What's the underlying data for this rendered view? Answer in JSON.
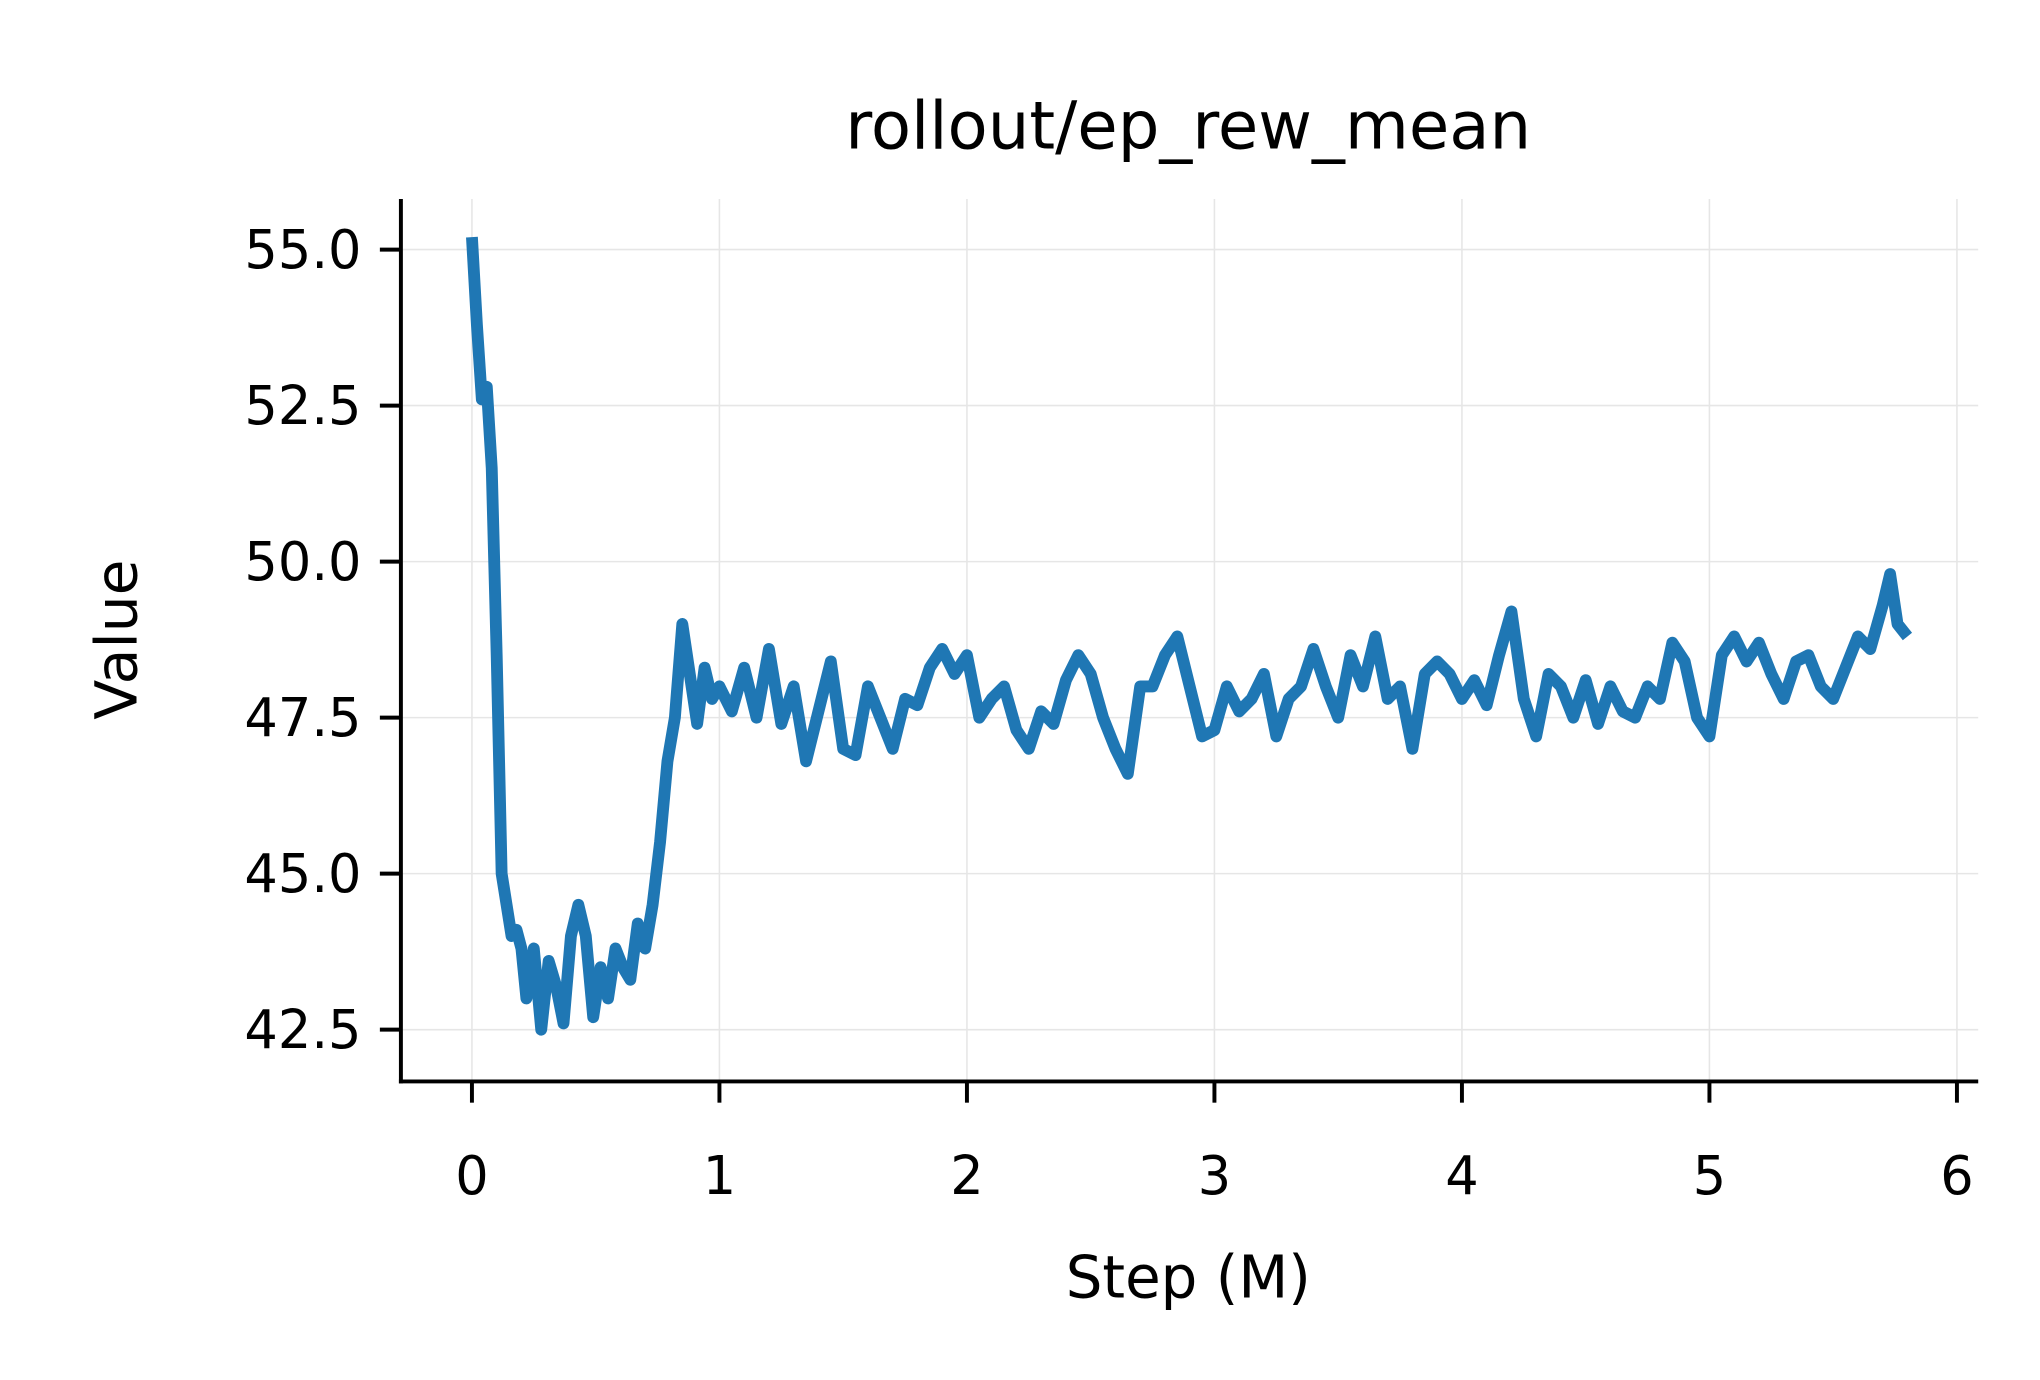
{
  "chart_data": {
    "type": "line",
    "title": "rollout/ep_rew_mean",
    "xlabel": "Step (M)",
    "ylabel": "Value",
    "x": [
      0,
      0.02,
      0.04,
      0.06,
      0.08,
      0.1,
      0.12,
      0.14,
      0.16,
      0.18,
      0.2,
      0.22,
      0.25,
      0.28,
      0.31,
      0.34,
      0.37,
      0.4,
      0.43,
      0.46,
      0.49,
      0.52,
      0.55,
      0.58,
      0.61,
      0.64,
      0.67,
      0.7,
      0.73,
      0.76,
      0.79,
      0.82,
      0.85,
      0.88,
      0.91,
      0.94,
      0.97,
      1.0,
      1.05,
      1.1,
      1.15,
      1.2,
      1.25,
      1.3,
      1.35,
      1.4,
      1.45,
      1.5,
      1.55,
      1.6,
      1.65,
      1.7,
      1.75,
      1.8,
      1.85,
      1.9,
      1.95,
      2.0,
      2.05,
      2.1,
      2.15,
      2.2,
      2.25,
      2.3,
      2.35,
      2.4,
      2.45,
      2.5,
      2.55,
      2.6,
      2.65,
      2.7,
      2.75,
      2.8,
      2.85,
      2.9,
      2.95,
      3.0,
      3.05,
      3.1,
      3.15,
      3.2,
      3.25,
      3.3,
      3.35,
      3.4,
      3.45,
      3.5,
      3.55,
      3.6,
      3.65,
      3.7,
      3.75,
      3.8,
      3.85,
      3.9,
      3.95,
      4.0,
      4.05,
      4.1,
      4.15,
      4.2,
      4.25,
      4.3,
      4.35,
      4.4,
      4.45,
      4.5,
      4.55,
      4.6,
      4.65,
      4.7,
      4.75,
      4.8,
      4.85,
      4.9,
      4.95,
      5.0,
      5.05,
      5.1,
      5.15,
      5.2,
      5.25,
      5.3,
      5.35,
      5.4,
      5.45,
      5.5,
      5.55,
      5.6,
      5.65,
      5.7,
      5.73,
      5.76,
      5.8
    ],
    "series": [
      {
        "name": "rollout/ep_rew_mean",
        "color": "#1f77b4",
        "values": [
          55.2,
          53.8,
          52.6,
          52.8,
          51.5,
          48.5,
          45.0,
          44.5,
          44.0,
          44.1,
          43.8,
          43.0,
          43.8,
          42.5,
          43.6,
          43.2,
          42.6,
          44.0,
          44.5,
          44.0,
          42.7,
          43.5,
          43.0,
          43.8,
          43.5,
          43.3,
          44.2,
          43.8,
          44.5,
          45.5,
          46.8,
          47.5,
          49.0,
          48.2,
          47.4,
          48.3,
          47.8,
          48.0,
          47.6,
          48.3,
          47.5,
          48.6,
          47.4,
          48.0,
          46.8,
          47.6,
          48.4,
          47.0,
          46.9,
          48.0,
          47.5,
          47.0,
          47.8,
          47.7,
          48.3,
          48.6,
          48.2,
          48.5,
          47.5,
          47.8,
          48.0,
          47.3,
          47.0,
          47.6,
          47.4,
          48.1,
          48.5,
          48.2,
          47.5,
          47.0,
          46.6,
          48.0,
          48.0,
          48.5,
          48.8,
          48.0,
          47.2,
          47.3,
          48.0,
          47.6,
          47.8,
          48.2,
          47.2,
          47.8,
          48.0,
          48.6,
          48.0,
          47.5,
          48.5,
          48.0,
          48.8,
          47.8,
          48.0,
          47.0,
          48.2,
          48.4,
          48.2,
          47.8,
          48.1,
          47.7,
          48.5,
          49.2,
          47.8,
          47.2,
          48.2,
          48.0,
          47.5,
          48.1,
          47.4,
          48.0,
          47.6,
          47.5,
          48.0,
          47.8,
          48.7,
          48.4,
          47.5,
          47.2,
          48.5,
          48.8,
          48.4,
          48.7,
          48.2,
          47.8,
          48.4,
          48.5,
          48.0,
          47.8,
          48.3,
          48.8,
          48.6,
          49.3,
          49.8,
          49.0,
          48.8
        ]
      }
    ],
    "xlim": [
      -0.287,
      6.086
    ],
    "xticks": [
      0,
      1,
      2,
      3,
      4,
      5,
      6
    ],
    "ylim": [
      41.67,
      55.81
    ],
    "yticks": [
      42.5,
      {
        "value": 45,
        "label": "45.0"
      },
      47.5,
      {
        "value": 50,
        "label": "50.0"
      },
      52.5,
      {
        "value": 55,
        "label": "55.0"
      }
    ],
    "grid": true
  }
}
